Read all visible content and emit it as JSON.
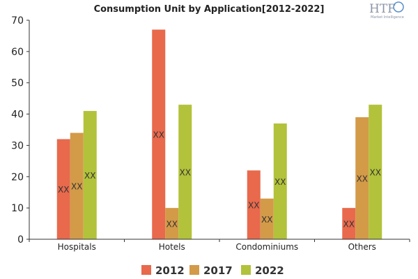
{
  "logo": {
    "mark": "HTF",
    "tagline": "Market Intelligence"
  },
  "colors": {
    "axis": "#333333",
    "grid": "#d9d9d9"
  },
  "chart_data": {
    "type": "bar",
    "title": "Consumption Unit by  Application[2012-2022]",
    "xlabel": "",
    "ylabel": "",
    "ylim": [
      0,
      70
    ],
    "yticks": [
      0,
      10,
      20,
      30,
      40,
      50,
      60,
      70
    ],
    "grid": false,
    "legend_position": "bottom",
    "categories": [
      "Hospitals",
      "Hotels",
      "Condominiums",
      "Others"
    ],
    "series": [
      {
        "name": "2012",
        "color": "#e8694c",
        "values": [
          32,
          67,
          22,
          10
        ],
        "labels": [
          "XX",
          "XX",
          "XX",
          "XX"
        ]
      },
      {
        "name": "2017",
        "color": "#d39a48",
        "values": [
          34,
          10,
          13,
          39
        ],
        "labels": [
          "XX",
          "XX",
          "XX",
          "XX"
        ]
      },
      {
        "name": "2022",
        "color": "#b2c23a",
        "values": [
          41,
          43,
          37,
          43
        ],
        "labels": [
          "XX",
          "XX",
          "XX",
          "XX"
        ]
      }
    ]
  }
}
